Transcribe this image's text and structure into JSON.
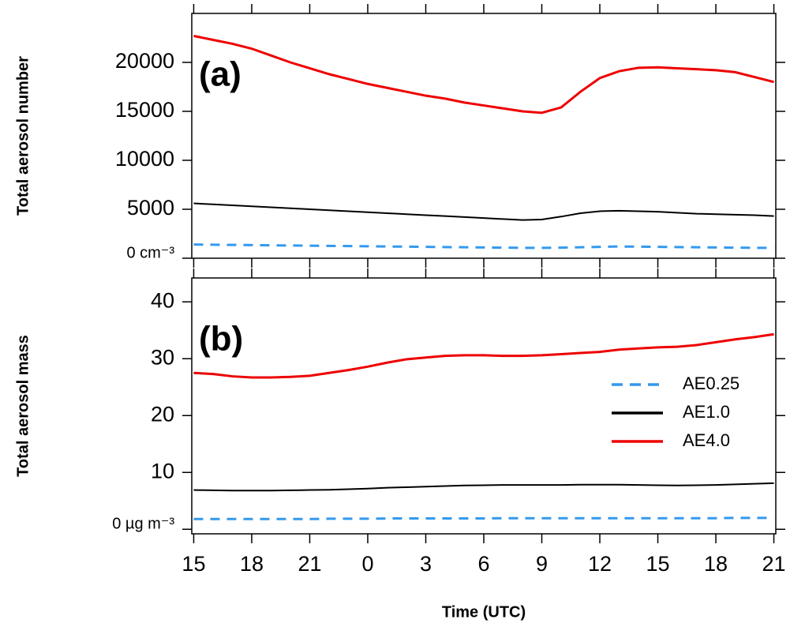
{
  "chart_data": [
    {
      "type": "line",
      "ylabel": "Total aerosol number",
      "annotation": "(a)",
      "x": [
        0,
        1,
        2,
        3,
        4,
        5,
        6,
        7,
        8,
        9,
        10,
        11,
        12,
        13,
        14,
        15,
        16,
        17,
        18,
        19,
        20,
        21,
        22,
        23,
        24,
        25,
        26,
        27,
        28,
        29,
        30
      ],
      "xlim": [
        -0.1,
        30.1
      ],
      "xticks": [
        0,
        3,
        6,
        9,
        12,
        15,
        18,
        21,
        24,
        27,
        30
      ],
      "ylim": [
        0,
        25000
      ],
      "yticks": [
        {
          "value": 0,
          "label": "0 cm⁻³"
        },
        5000,
        10000,
        15000,
        20000
      ],
      "series": [
        {
          "color": "#3399ee",
          "dash": true,
          "values": [
            1400,
            1380,
            1360,
            1340,
            1320,
            1300,
            1280,
            1260,
            1240,
            1220,
            1200,
            1180,
            1160,
            1140,
            1120,
            1100,
            1080,
            1060,
            1060,
            1080,
            1120,
            1160,
            1200,
            1180,
            1160,
            1140,
            1120,
            1100,
            1080,
            1060,
            1050
          ]
        },
        {
          "color": "#000000",
          "values": [
            5600,
            5500,
            5400,
            5300,
            5200,
            5100,
            5000,
            4900,
            4800,
            4700,
            4600,
            4500,
            4400,
            4300,
            4200,
            4100,
            4000,
            3900,
            3950,
            4250,
            4600,
            4800,
            4850,
            4800,
            4750,
            4650,
            4550,
            4500,
            4450,
            4400,
            4300
          ]
        },
        {
          "color": "#ee0000",
          "values": [
            22700,
            22300,
            21900,
            21400,
            20700,
            20000,
            19400,
            18800,
            18300,
            17800,
            17400,
            17000,
            16600,
            16300,
            15900,
            15600,
            15300,
            15000,
            14850,
            15400,
            17000,
            18400,
            19100,
            19450,
            19500,
            19400,
            19300,
            19200,
            19000,
            18500,
            18000
          ]
        }
      ]
    },
    {
      "type": "line",
      "ylabel": "Total aerosol mass",
      "xlabel": "Time (UTC)",
      "annotation": "(b)",
      "x": [
        0,
        1,
        2,
        3,
        4,
        5,
        6,
        7,
        8,
        9,
        10,
        11,
        12,
        13,
        14,
        15,
        16,
        17,
        18,
        19,
        20,
        21,
        22,
        23,
        24,
        25,
        26,
        27,
        28,
        29,
        30
      ],
      "xlim": [
        -0.1,
        30.1
      ],
      "xticks": [
        {
          "value": 0,
          "label": "15"
        },
        {
          "value": 3,
          "label": "18"
        },
        {
          "value": 6,
          "label": "21"
        },
        {
          "value": 9,
          "label": "0"
        },
        {
          "value": 12,
          "label": "3"
        },
        {
          "value": 15,
          "label": "6"
        },
        {
          "value": 18,
          "label": "9"
        },
        {
          "value": 21,
          "label": "12"
        },
        {
          "value": 24,
          "label": "15"
        },
        {
          "value": 27,
          "label": "18"
        },
        {
          "value": 30,
          "label": "21"
        }
      ],
      "ylim": [
        -0.8,
        44.2
      ],
      "yticks": [
        {
          "value": 0,
          "label": "0 µg m⁻³"
        },
        10,
        20,
        30,
        40
      ],
      "series": [
        {
          "name": "AE0.25",
          "color": "#3399ee",
          "dash": true,
          "values": [
            1.8,
            1.8,
            1.8,
            1.8,
            1.8,
            1.8,
            1.8,
            1.85,
            1.85,
            1.85,
            1.9,
            1.9,
            1.9,
            1.9,
            1.9,
            1.9,
            1.95,
            1.95,
            1.95,
            1.95,
            1.95,
            1.95,
            1.95,
            1.95,
            1.95,
            1.95,
            1.95,
            1.95,
            2.0,
            2.0,
            2.0
          ]
        },
        {
          "name": "AE1.0",
          "color": "#000000",
          "values": [
            6.9,
            6.85,
            6.8,
            6.8,
            6.8,
            6.85,
            6.9,
            6.95,
            7.05,
            7.15,
            7.3,
            7.4,
            7.5,
            7.6,
            7.7,
            7.75,
            7.8,
            7.8,
            7.8,
            7.8,
            7.85,
            7.85,
            7.85,
            7.8,
            7.75,
            7.7,
            7.75,
            7.8,
            7.9,
            8.0,
            8.1
          ]
        },
        {
          "name": "AE4.0",
          "color": "#ee0000",
          "values": [
            27.5,
            27.3,
            26.9,
            26.7,
            26.7,
            26.8,
            27.0,
            27.5,
            28.0,
            28.6,
            29.3,
            29.9,
            30.2,
            30.5,
            30.6,
            30.6,
            30.5,
            30.5,
            30.6,
            30.8,
            31.0,
            31.2,
            31.6,
            31.8,
            32.0,
            32.1,
            32.4,
            32.9,
            33.4,
            33.8,
            34.3
          ]
        }
      ],
      "legend": "right"
    }
  ]
}
